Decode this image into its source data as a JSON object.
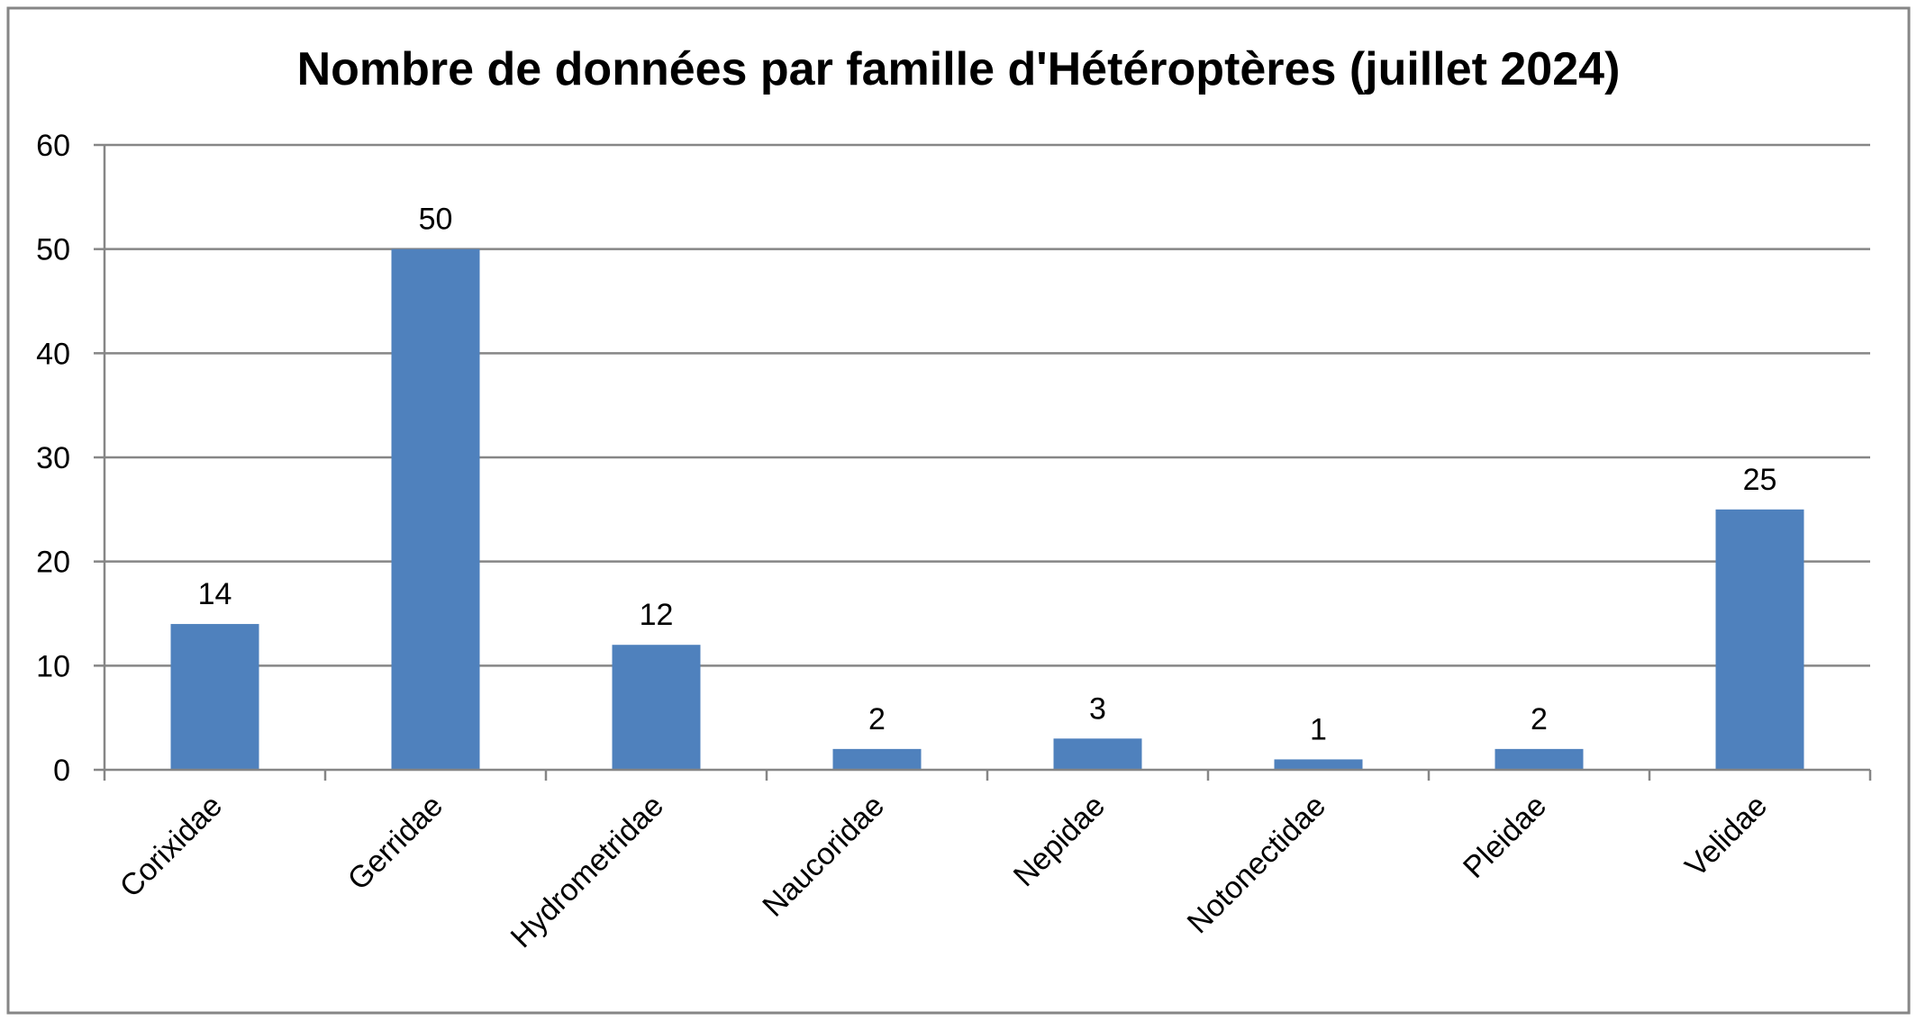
{
  "chart_data": {
    "type": "bar",
    "title": "Nombre de données par famille d'Hétéroptères (juillet 2024)",
    "xlabel": "",
    "ylabel": "",
    "categories": [
      "Corixidae",
      "Gerridae",
      "Hydrometridae",
      "Naucoridae",
      "Nepidae",
      "Notonectidae",
      "Pleidae",
      "Velidae"
    ],
    "values": [
      14,
      50,
      12,
      2,
      3,
      1,
      2,
      25
    ],
    "data_labels": [
      "14",
      "50",
      "12",
      "2",
      "3",
      "1",
      "2",
      "25"
    ],
    "ylim": [
      0,
      60
    ],
    "yticks": [
      0,
      10,
      20,
      30,
      40,
      50,
      60
    ],
    "ytick_labels": [
      "0",
      "10",
      "20",
      "30",
      "40",
      "50",
      "60"
    ],
    "grid": true,
    "legend": "none",
    "bar_color": "#4f81bd",
    "grid_color": "#868686",
    "border_color": "#868686"
  }
}
